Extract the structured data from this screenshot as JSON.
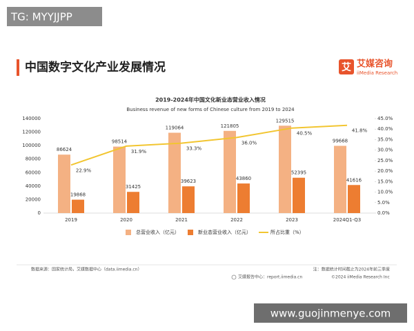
{
  "watermark_top": "TG: MYYJJPP",
  "watermark_bottom": "www.guojinmenye.com",
  "header": {
    "title": "中国数字文化产业发展情况",
    "logo": {
      "icon": "艾",
      "name": "艾媒咨询",
      "english": "iiMedia Research"
    }
  },
  "chart_data": {
    "type": "bar",
    "title": "2019-2024年中国文化新业态营业收入情况",
    "subtitle": "Business revenue of new forms of Chinese culture from 2019 to 2024",
    "categories": [
      "2019",
      "2020",
      "2021",
      "2022",
      "2023",
      "2024Q1-Q3"
    ],
    "series": [
      {
        "name": "总营业收入（亿元）",
        "color": "#f4b183",
        "values": [
          86624,
          98514,
          119064,
          121805,
          129515,
          99668
        ]
      },
      {
        "name": "新业态营业收入（亿元）",
        "color": "#ed7d31",
        "values": [
          19868,
          31425,
          39623,
          43860,
          52395,
          41616
        ]
      },
      {
        "name": "所占比重（%）",
        "color": "#f2c530",
        "type": "line",
        "axis": "y2",
        "values": [
          22.9,
          31.9,
          33.3,
          36.0,
          40.5,
          41.8
        ],
        "value_labels": [
          "22.9%",
          "31.9%",
          "33.3%",
          "36.0%",
          "40.5%",
          "41.8%"
        ]
      }
    ],
    "ylim": [
      0,
      140000
    ],
    "yticks": [
      0,
      20000,
      40000,
      60000,
      80000,
      100000,
      120000,
      140000
    ],
    "y2lim": [
      0,
      45
    ],
    "y2ticks": [
      {
        "value": 0,
        "label": "0.0%"
      },
      {
        "value": 5,
        "label": "5.0%"
      },
      {
        "value": 10,
        "label": "10.0%"
      },
      {
        "value": 15,
        "label": "15.0%"
      },
      {
        "value": 20,
        "label": "20.0%"
      },
      {
        "value": 25,
        "label": "25.0%"
      },
      {
        "value": 30,
        "label": "30.0%"
      },
      {
        "value": 35,
        "label": "35.0%"
      },
      {
        "value": 40,
        "label": "40.0%"
      },
      {
        "value": 45,
        "label": "45.0%"
      }
    ],
    "grid": false,
    "legend": "bottom"
  },
  "footer": {
    "source": "数据来源：国家统计局，艾媒数据中心（data.iimedia.cn）",
    "note": "注：数据统计时间截止为2024年前三季度",
    "report": "艾媒报告中心：report.iimedia.cn",
    "copyright": "©2024 iiMedia Research Inc"
  }
}
